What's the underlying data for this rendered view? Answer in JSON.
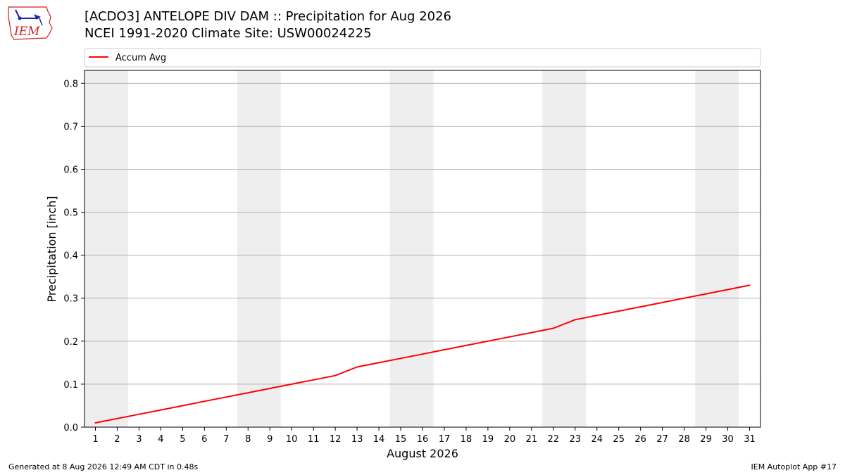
{
  "header": {
    "logo_text": "IEM",
    "title_line1": "[ACDO3] ANTELOPE DIV DAM :: Precipitation for Aug 2026",
    "title_line2": "NCEI 1991-2020 Climate Site: USW00024225"
  },
  "footer": {
    "generated": "Generated at 8 Aug 2026 12:49 AM CDT in 0.48s",
    "app": "IEM Autoplot App #17"
  },
  "colors": {
    "line": "#ff0000",
    "weekend_band": "#eeeeee",
    "grid": "#b0b0b0",
    "logo": "#cc2222"
  },
  "chart_data": {
    "type": "line",
    "xlabel": "August 2026",
    "ylabel": "Precipitation [inch]",
    "xlim": [
      0.5,
      31.5
    ],
    "ylim": [
      0,
      0.83
    ],
    "x_ticks": [
      1,
      2,
      3,
      4,
      5,
      6,
      7,
      8,
      9,
      10,
      11,
      12,
      13,
      14,
      15,
      16,
      17,
      18,
      19,
      20,
      21,
      22,
      23,
      24,
      25,
      26,
      27,
      28,
      29,
      30,
      31
    ],
    "y_ticks": [
      0.0,
      0.1,
      0.2,
      0.3,
      0.4,
      0.5,
      0.6,
      0.7,
      0.8
    ],
    "y_tick_labels": [
      "0.0",
      "0.1",
      "0.2",
      "0.3",
      "0.4",
      "0.5",
      "0.6",
      "0.7",
      "0.8"
    ],
    "grid": "horizontal",
    "legend_position": "top",
    "weekend_bands": [
      [
        0.5,
        2.5
      ],
      [
        7.5,
        9.5
      ],
      [
        14.5,
        16.5
      ],
      [
        21.5,
        23.5
      ],
      [
        28.5,
        30.5
      ]
    ],
    "series": [
      {
        "name": "Accum Avg",
        "color": "#ff0000",
        "x": [
          1,
          2,
          3,
          4,
          5,
          6,
          7,
          8,
          9,
          10,
          11,
          12,
          13,
          14,
          15,
          16,
          17,
          18,
          19,
          20,
          21,
          22,
          23,
          24,
          25,
          26,
          27,
          28,
          29,
          30,
          31
        ],
        "values": [
          0.01,
          0.02,
          0.03,
          0.04,
          0.05,
          0.06,
          0.07,
          0.08,
          0.09,
          0.1,
          0.11,
          0.12,
          0.14,
          0.15,
          0.16,
          0.17,
          0.18,
          0.19,
          0.2,
          0.21,
          0.22,
          0.23,
          0.25,
          0.26,
          0.27,
          0.28,
          0.29,
          0.3,
          0.31,
          0.32,
          0.33
        ]
      }
    ]
  }
}
